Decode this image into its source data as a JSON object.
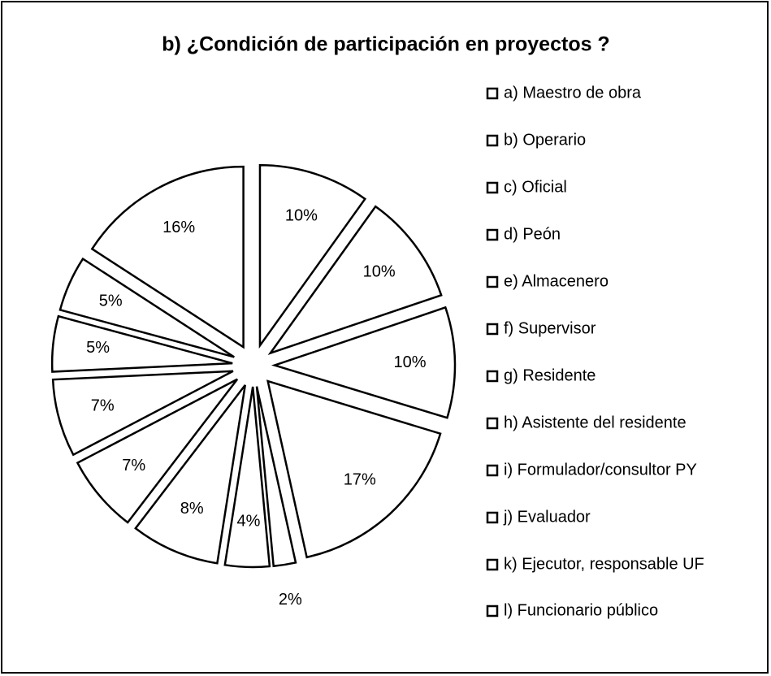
{
  "chart_data": {
    "type": "pie",
    "title": "b) ¿Condición de participación en proyectos ?",
    "categories": [
      "a) Maestro de obra",
      "b) Operario",
      "c) Oficial",
      "d) Peón",
      "e) Almacenero",
      "f) Supervisor",
      "g) Residente",
      "h) Asistente del residente",
      "i) Formulador/consultor PY",
      "j) Evaluador",
      "k) Ejecutor, responsable UF",
      "l) Funcionario público"
    ],
    "values": [
      10,
      10,
      10,
      17,
      2,
      4,
      8,
      7,
      7,
      5,
      5,
      16
    ],
    "color": "#ffffff",
    "edge_color": "#000000",
    "legend": "right"
  }
}
